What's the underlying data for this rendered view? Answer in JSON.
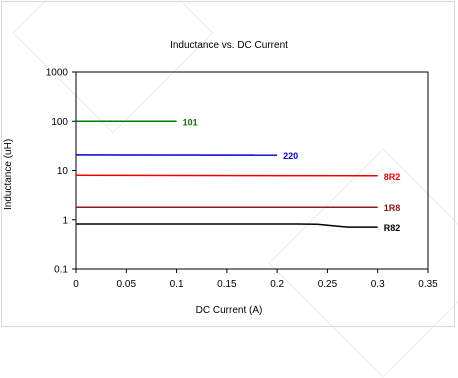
{
  "chart_data": {
    "type": "line",
    "title": "Inductance vs. DC Current",
    "xlabel": "DC Current (A)",
    "ylabel": "Inductance (uH)",
    "xlim": [
      0,
      0.35
    ],
    "ylim": [
      0.1,
      1000
    ],
    "yscale": "log",
    "xticks": [
      0,
      0.05,
      0.1,
      0.15,
      0.2,
      0.25,
      0.3,
      0.35
    ],
    "xtick_labels": [
      "0",
      "0.05",
      "0.1",
      "0.15",
      "0.2",
      "0.25",
      "0.3",
      "0.35"
    ],
    "yticks": [
      0.1,
      1,
      10,
      100,
      1000
    ],
    "ytick_labels": [
      "0.1",
      "1",
      "10",
      "100",
      "1000"
    ],
    "series": [
      {
        "name": "101",
        "color": "#007a00",
        "points": [
          [
            0,
            100
          ],
          [
            0.1,
            100
          ]
        ]
      },
      {
        "name": "220",
        "color": "#0000cc",
        "points": [
          [
            0,
            20.7
          ],
          [
            0.2,
            20.5
          ]
        ]
      },
      {
        "name": "8R2",
        "color": "#ee0000",
        "points": [
          [
            0,
            8.0
          ],
          [
            0.3,
            7.8
          ]
        ]
      },
      {
        "name": "1R8",
        "color": "#8b1a1a",
        "points": [
          [
            0,
            1.8
          ],
          [
            0.3,
            1.8
          ]
        ]
      },
      {
        "name": "R82",
        "color": "#000000",
        "points": [
          [
            0,
            0.82
          ],
          [
            0.22,
            0.82
          ],
          [
            0.24,
            0.81
          ],
          [
            0.25,
            0.77
          ],
          [
            0.27,
            0.71
          ],
          [
            0.3,
            0.71
          ]
        ]
      }
    ]
  }
}
